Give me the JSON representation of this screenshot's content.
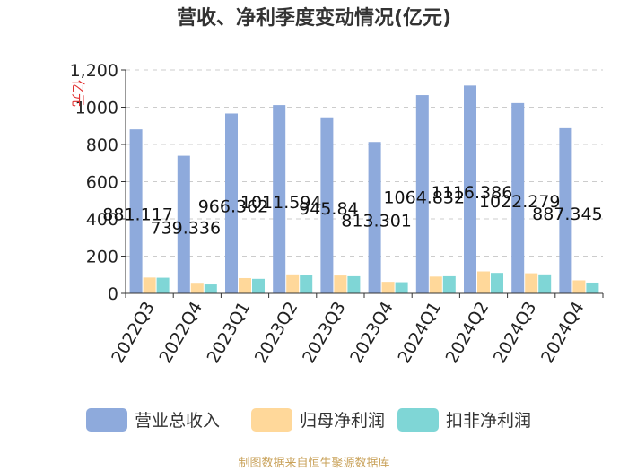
{
  "chart_data": {
    "type": "bar",
    "title": "营收、净利季度变动情况(亿元)",
    "ylabel": "亿元",
    "xlabel": "",
    "ylim": [
      0,
      1200
    ],
    "yticks": [
      0,
      200,
      400,
      600,
      800,
      1000,
      1200
    ],
    "ytick_labels": [
      "0",
      "200",
      "400",
      "600",
      "800",
      "1000",
      "1,200"
    ],
    "grid": true,
    "legend_position": "bottom",
    "categories": [
      "2022Q3",
      "2022Q4",
      "2023Q1",
      "2023Q2",
      "2023Q3",
      "2023Q4",
      "2024Q1",
      "2024Q2",
      "2024Q3",
      "2024Q4"
    ],
    "series": [
      {
        "name": "营业总收入",
        "color": "#8eaadc",
        "values": [
          881.117,
          739.336,
          966.362,
          1011.594,
          945.84,
          813.301,
          1064.832,
          1116.386,
          1022.279,
          887.345
        ],
        "labels": [
          "881.117",
          "739.336",
          "966.362",
          "1011.594",
          "945.84",
          "813.301",
          "1064.832",
          "1116.386",
          "1022.279",
          "887.345"
        ]
      },
      {
        "name": "归母净利润",
        "color": "#ffd89a",
        "values": [
          85,
          52,
          82,
          102,
          96,
          62,
          90,
          118,
          108,
          70
        ]
      },
      {
        "name": "扣非净利润",
        "color": "#7fd6d6",
        "values": [
          84,
          48,
          78,
          100,
          92,
          60,
          92,
          110,
          102,
          58
        ]
      }
    ],
    "source": "制图数据来自恒生聚源数据库"
  }
}
